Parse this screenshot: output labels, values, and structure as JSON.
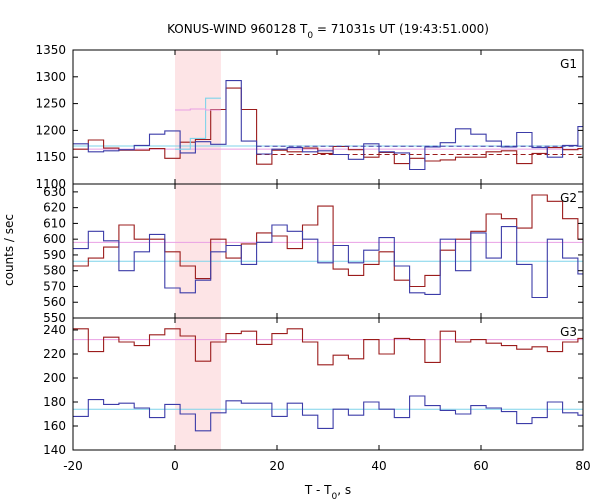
{
  "chart_data": {
    "type": "line",
    "title": "KONUS-WIND 960128 T0 = 71031s UT (19:43:51.000)",
    "title_parts": {
      "prefix": "KONUS-WIND 960128 T",
      "sub": "0",
      "suffix": " = 71031s UT (19:43:51.000)"
    },
    "xlabel": "T - T0, s",
    "xlabel_parts": {
      "prefix": "T - T",
      "sub": "0",
      "suffix": ", s"
    },
    "ylabel": "counts / sec",
    "xlim": [
      -20,
      80
    ],
    "x_ticks": [
      -20,
      0,
      20,
      40,
      60,
      80
    ],
    "highlight_interval": [
      0,
      9
    ],
    "colors": {
      "red_series": "#9b1c1c",
      "blue_series": "#3c3ca8",
      "red_bg": "#e9a0e4",
      "blue_bg": "#7fd3ea",
      "cyan_series": "#7fd3ea",
      "pink_series": "#e9a0e4",
      "highlight": "#fde4e6"
    },
    "panels": [
      {
        "label": "G1",
        "ylim": [
          1100,
          1350
        ],
        "y_ticks": [
          1100,
          1150,
          1200,
          1250,
          1300,
          1350
        ],
        "red_background": 1165,
        "blue_background": 1171,
        "series": [
          {
            "color_key": "red_series",
            "bin": 3,
            "start": -20,
            "dashed_from": 12,
            "values": [
              1165,
              1182,
              1167,
              1163,
              1163,
              1166,
              1148,
              1178,
              1183,
              1239,
              1279,
              1239,
              1137,
              1163,
              1160,
              1167,
              1157,
              1170,
              1164,
              1150,
              1159,
              1138,
              1148,
              1143,
              1145,
              1150,
              1150,
              1160,
              1162,
              1138,
              1157,
              1168,
              1164,
              1166,
              1163,
              1140
            ]
          },
          {
            "color_key": "blue_series",
            "bin": 3,
            "start": -20,
            "dashed_from": 12,
            "values": [
              1175,
              1160,
              1162,
              1164,
              1172,
              1193,
              1199,
              1158,
              1179,
              1174,
              1293,
              1180,
              1156,
              1165,
              1168,
              1160,
              1162,
              1155,
              1146,
              1175,
              1160,
              1158,
              1127,
              1169,
              1177,
              1203,
              1193,
              1180,
              1169,
              1196,
              1168,
              1150,
              1172,
              1207,
              1204,
              1169
            ]
          },
          {
            "color_key": "cyan_series",
            "bin": 3,
            "start": 0,
            "values": [
              1165,
              1185,
              1260
            ]
          },
          {
            "color_key": "pink_series",
            "bin": 3,
            "start": 0,
            "values": [
              1238,
              1240,
              1238
            ]
          }
        ]
      },
      {
        "label": "G2",
        "ylim": [
          550,
          635
        ],
        "y_ticks": [
          550,
          560,
          570,
          580,
          590,
          600,
          610,
          620,
          630
        ],
        "red_background": 598,
        "blue_background": 586,
        "series": [
          {
            "color_key": "red_series",
            "bin": 3,
            "start": -20,
            "values": [
              583,
              588,
              595,
              609,
              600,
              600,
              592,
              583,
              575,
              600,
              588,
              597,
              604,
              602,
              594,
              609,
              621,
              581,
              577,
              584,
              592,
              574,
              570,
              577,
              593,
              600,
              605,
              616,
              613,
              607,
              628,
              624,
              613,
              600,
              606,
              579,
              580,
              591,
              610,
              578
            ]
          },
          {
            "color_key": "blue_series",
            "bin": 3,
            "start": -20,
            "values": [
              594,
              605,
              599,
              580,
              592,
              603,
              569,
              566,
              574,
              592,
              596,
              584,
              598,
              609,
              605,
              600,
              585,
              596,
              585,
              593,
              601,
              583,
              566,
              565,
              600,
              580,
              604,
              588,
              608,
              584,
              563,
              600,
              588,
              578,
              579,
              577,
              596,
              597,
              577,
              573
            ]
          }
        ]
      },
      {
        "label": "G3",
        "ylim": [
          140,
          250
        ],
        "y_ticks": [
          140,
          160,
          180,
          200,
          220,
          240
        ],
        "red_background": 232,
        "blue_background": 174,
        "series": [
          {
            "color_key": "red_series",
            "bin": 3,
            "start": -20,
            "values": [
              241,
              222,
              234,
              230,
              227,
              236,
              241,
              235,
              214,
              230,
              237,
              239,
              228,
              237,
              241,
              230,
              211,
              219,
              216,
              232,
              220,
              233,
              232,
              213,
              239,
              230,
              232,
              229,
              227,
              224,
              226,
              222,
              230,
              233,
              238,
              230,
              227,
              243,
              219,
              226
            ]
          },
          {
            "color_key": "blue_series",
            "bin": 3,
            "start": -20,
            "values": [
              168,
              182,
              178,
              179,
              175,
              167,
              178,
              170,
              156,
              171,
              181,
              179,
              179,
              168,
              179,
              169,
              158,
              174,
              169,
              180,
              174,
              167,
              185,
              177,
              173,
              170,
              177,
              175,
              172,
              162,
              167,
              180,
              171,
              169,
              175,
              172,
              167,
              171,
              179,
              172
            ]
          }
        ]
      }
    ]
  }
}
